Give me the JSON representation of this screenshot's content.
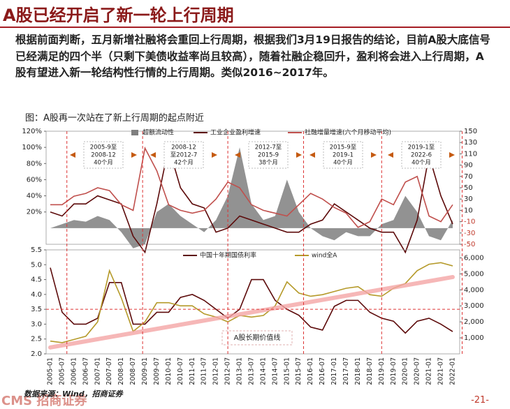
{
  "header": {
    "title": "A股已经开启了新一轮上行周期"
  },
  "body": "根据前面判断，五月新增社融将会重回上行周期，根据我们3月19日报告的结论，目前A股大底信号已经满足的四个半（只剩下美债收益率尚且较高），随着社融企稳回升，盈利将会进入上行周期，A股有望进入新一轮结构性行情的上行周期。类似2016~2017年。",
  "caption": "图：A股再一次站在了新上行周期的起点附近",
  "footer": {
    "source": "数据来源：Wind，招商证券",
    "logo": "CMS 招商证券",
    "page": "-21-"
  },
  "annotations": [
    [
      "2005-9至",
      "2008-12",
      "40个月"
    ],
    [
      "2008-12",
      "至2012-7",
      "42个月"
    ],
    [
      "2012-7至",
      "2015-9",
      "38个月"
    ],
    [
      "2015-9至",
      "2019-1",
      "40个月"
    ],
    [
      "2019-1至",
      "2022-6",
      "40个月"
    ]
  ],
  "chart_data": [
    {
      "type": "line",
      "ylim": [
        -20,
        120
      ],
      "yticks": [
        {
          "value": 120,
          "label": "120%"
        },
        {
          "value": 100,
          "label": "100%"
        },
        {
          "value": 80,
          "label": "80%"
        },
        {
          "value": 60,
          "label": "60%"
        },
        {
          "value": 40,
          "label": "40%"
        },
        {
          "value": 20,
          "label": "20%"
        }
      ],
      "y2lim": [
        -50,
        150
      ],
      "y2ticks": [
        150,
        130,
        110,
        90,
        70,
        50,
        30,
        10,
        -10,
        -30,
        -50
      ],
      "series": [
        {
          "name": "超额流动性",
          "color": "#7f7f7f",
          "style": "area",
          "values": [
            0,
            5,
            10,
            8,
            15,
            10,
            -5,
            -25,
            -20,
            20,
            30,
            15,
            5,
            -5,
            10,
            40,
            100,
            30,
            10,
            15,
            60,
            20,
            0,
            -10,
            -15,
            -5,
            -10,
            -10,
            5,
            10,
            40,
            20,
            -10,
            -15,
            10
          ]
        },
        {
          "name": "工业企业盈利增速",
          "color": "#5c0a0a",
          "values": [
            20,
            15,
            30,
            30,
            40,
            35,
            30,
            -10,
            -30,
            30,
            100,
            50,
            30,
            25,
            -5,
            0,
            15,
            10,
            5,
            0,
            -5,
            -5,
            5,
            10,
            30,
            20,
            10,
            0,
            -5,
            -5,
            -30,
            10,
            90,
            40,
            5
          ]
        },
        {
          "name": "社融增量增速(六个月移动平均)",
          "color": "#c0504d",
          "axis": "y2",
          "values": [
            20,
            20,
            35,
            40,
            50,
            45,
            20,
            10,
            120,
            80,
            20,
            10,
            5,
            10,
            30,
            60,
            50,
            20,
            10,
            5,
            0,
            20,
            40,
            30,
            15,
            5,
            -20,
            -10,
            30,
            20,
            60,
            70,
            0,
            -10,
            20
          ]
        }
      ]
    },
    {
      "type": "line",
      "categories": [
        "2005-01",
        "2005-07",
        "2006-01",
        "2006-07",
        "2007-01",
        "2007-07",
        "2008-01",
        "2008-07",
        "2009-01",
        "2009-07",
        "2010-01",
        "2010-07",
        "2011-01",
        "2011-07",
        "2012-01",
        "2012-07",
        "2013-01",
        "2013-07",
        "2014-01",
        "2014-07",
        "2015-01",
        "2015-07",
        "2016-01",
        "2016-07",
        "2017-01",
        "2017-07",
        "2018-01",
        "2018-07",
        "2019-01",
        "2019-07",
        "2020-01",
        "2020-07",
        "2021-01",
        "2021-07",
        "2022-01"
      ],
      "ylim": [
        2.0,
        5.5
      ],
      "yticks": [
        {
          "value": 2.0,
          "label": "2.0"
        },
        2.5,
        {
          "value": 3.0,
          "label": "3.0"
        },
        3.5,
        {
          "value": 4.0,
          "label": "4.0"
        },
        4.5,
        {
          "value": 5.0,
          "label": "5.0"
        },
        5.5
      ],
      "y2lim": [
        0,
        6500
      ],
      "y2ticks": [
        {
          "value": 1000,
          "label": "1,000"
        },
        {
          "value": 2000,
          "label": "2,000"
        },
        {
          "value": 3000,
          "label": "3,000"
        },
        {
          "value": 4000,
          "label": "4,000"
        },
        {
          "value": 5000,
          "label": "5,000"
        },
        {
          "value": 6000,
          "label": "6,000"
        }
      ],
      "series": [
        {
          "name": "中国十年期国债利率",
          "color": "#5c0a0a",
          "values": [
            4.9,
            3.4,
            3.0,
            3.0,
            3.2,
            4.4,
            4.4,
            3.0,
            3.0,
            3.4,
            3.4,
            3.9,
            4.0,
            3.8,
            3.5,
            3.2,
            3.5,
            4.5,
            4.5,
            3.8,
            3.5,
            3.3,
            2.9,
            2.8,
            3.6,
            3.8,
            3.8,
            3.4,
            3.2,
            3.1,
            2.7,
            3.1,
            3.2,
            3.0,
            2.75
          ]
        },
        {
          "name": "wind全A",
          "color": "#b59a2a",
          "axis": "y2",
          "values": [
            800,
            700,
            900,
            1100,
            2000,
            5200,
            3500,
            1400,
            2000,
            3200,
            3200,
            3000,
            3000,
            2500,
            2300,
            2000,
            2400,
            2300,
            2400,
            3000,
            4500,
            3800,
            3600,
            3700,
            3900,
            4100,
            4200,
            3700,
            3600,
            4100,
            4400,
            5200,
            5600,
            5700,
            5500
          ]
        }
      ],
      "trend": {
        "label": "A股长期价值线",
        "color": "#f4a6a6",
        "values": [
          400,
          4800
        ]
      }
    }
  ]
}
